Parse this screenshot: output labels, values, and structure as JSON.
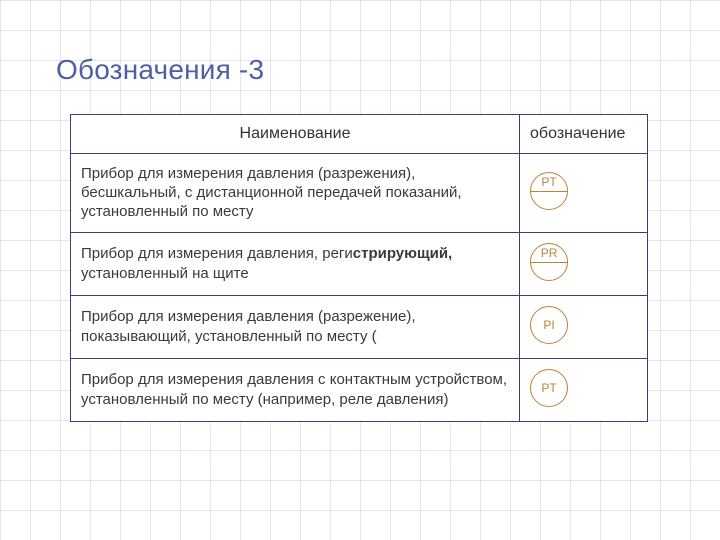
{
  "title": "Обозначения -3",
  "colors": {
    "title": "#4e5fa3",
    "border": "#35417a",
    "symbol": "#b9843a",
    "grid": "rgba(120,140,200,0.22)",
    "bg": "#ffffff"
  },
  "columns": {
    "name": "Наименование",
    "symbol": "обозначение"
  },
  "rows": [
    {
      "text": "Прибор для измерения давления (разрежения), бесшкальный, с дистанционной передачей показаний, установленный по месту",
      "symbol": {
        "code": "PT",
        "split": true
      }
    },
    {
      "text_pre": "Прибор  для измерения   давления,   реги",
      "text_bold": "стрирующий,",
      "text_post": "   установленный   на   щите",
      "symbol": {
        "code": "PR",
        "split": true
      }
    },
    {
      "text": "Прибор для измерения давления (разрежение), показывающий, установленный по месту (",
      "symbol": {
        "code": "PI",
        "split": false
      }
    },
    {
      "text": "Прибор для измерения давления с контактным устройством,   установленный   по   месту   (например,   реле   давления)",
      "symbol": {
        "code": "PT",
        "split": false
      }
    }
  ]
}
